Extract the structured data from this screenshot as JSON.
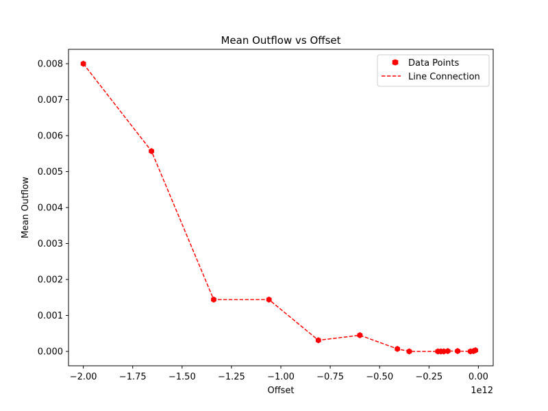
{
  "chart_data": {
    "type": "scatter",
    "title": "Mean Outflow vs Offset",
    "xlabel": "Offset",
    "ylabel": "Mean Outflow",
    "x_offset_label": "1e12",
    "xlim": [
      -2.075,
      0.075
    ],
    "ylim": [
      -0.0004,
      0.0084
    ],
    "x_ticks": [
      -2.0,
      -1.75,
      -1.5,
      -1.25,
      -1.0,
      -0.75,
      -0.5,
      -0.25,
      0.0
    ],
    "x_tick_labels": [
      "−2.00",
      "−1.75",
      "−1.50",
      "−1.25",
      "−1.00",
      "−0.75",
      "−0.50",
      "−0.25",
      "0.00"
    ],
    "y_ticks": [
      0.0,
      0.001,
      0.002,
      0.003,
      0.004,
      0.005,
      0.006,
      0.007,
      0.008
    ],
    "y_tick_labels": [
      "0.000",
      "0.001",
      "0.002",
      "0.003",
      "0.004",
      "0.005",
      "0.006",
      "0.007",
      "0.008"
    ],
    "grid": false,
    "legend_position": "top-right",
    "color": "#ff0000",
    "series": [
      {
        "name": "Data Points",
        "style": "markers",
        "x": [
          -2.0,
          -1.655,
          -1.34,
          -1.06,
          -0.81,
          -0.6,
          -0.41,
          -0.35,
          -0.205,
          -0.19,
          -0.175,
          -0.155,
          -0.105,
          -0.04,
          -0.025,
          -0.015
        ],
        "y": [
          0.008,
          0.00557,
          0.00144,
          0.00144,
          0.00031,
          0.00045,
          7e-05,
          0.0,
          0.0,
          0.0,
          0.0,
          1e-05,
          1e-05,
          0.0,
          1e-05,
          3e-05
        ]
      },
      {
        "name": "Line Connection",
        "style": "dashed-line",
        "x": [
          -2.0,
          -1.655,
          -1.34,
          -1.06,
          -0.81,
          -0.6,
          -0.41,
          -0.35,
          -0.205,
          -0.19,
          -0.175,
          -0.155,
          -0.105,
          -0.04,
          -0.025,
          -0.015
        ],
        "y": [
          0.008,
          0.00557,
          0.00144,
          0.00144,
          0.00031,
          0.00045,
          7e-05,
          0.0,
          0.0,
          0.0,
          0.0,
          1e-05,
          1e-05,
          0.0,
          1e-05,
          3e-05
        ]
      }
    ]
  }
}
